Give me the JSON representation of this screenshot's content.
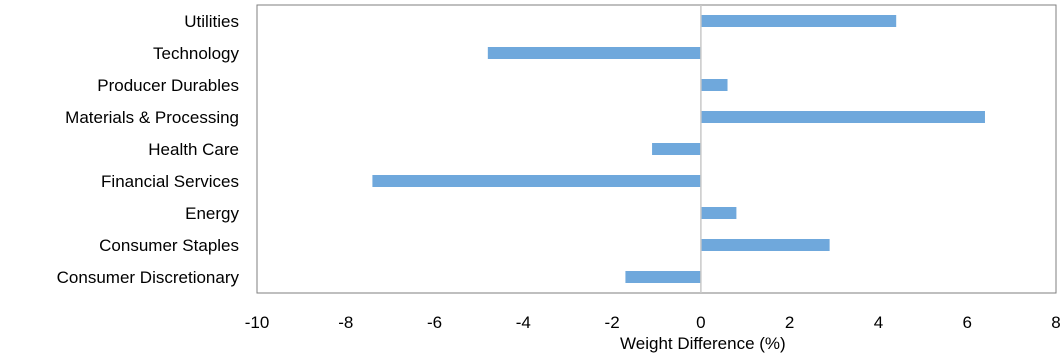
{
  "chart_data": {
    "type": "bar",
    "orientation": "horizontal",
    "categories": [
      "Utilities",
      "Technology",
      "Producer Durables",
      "Materials & Processing",
      "Health Care",
      "Financial Services",
      "Energy",
      "Consumer Staples",
      "Consumer Discretionary"
    ],
    "values": [
      4.4,
      -4.8,
      0.6,
      6.4,
      -1.1,
      -7.4,
      0.8,
      2.9,
      -1.7
    ],
    "title": "",
    "xlabel": "Weight Difference (%)",
    "ylabel": "",
    "xlim": [
      -10,
      8
    ],
    "xticks": [
      "-10",
      "-8",
      "-6",
      "-4",
      "-2",
      "0",
      "2",
      "4",
      "6",
      "8"
    ],
    "grid": false,
    "legend": "none",
    "bar_color": "#6fa8dc",
    "zero_line_color": "#c8c8c8",
    "frame_color": "#7f7f7f"
  }
}
